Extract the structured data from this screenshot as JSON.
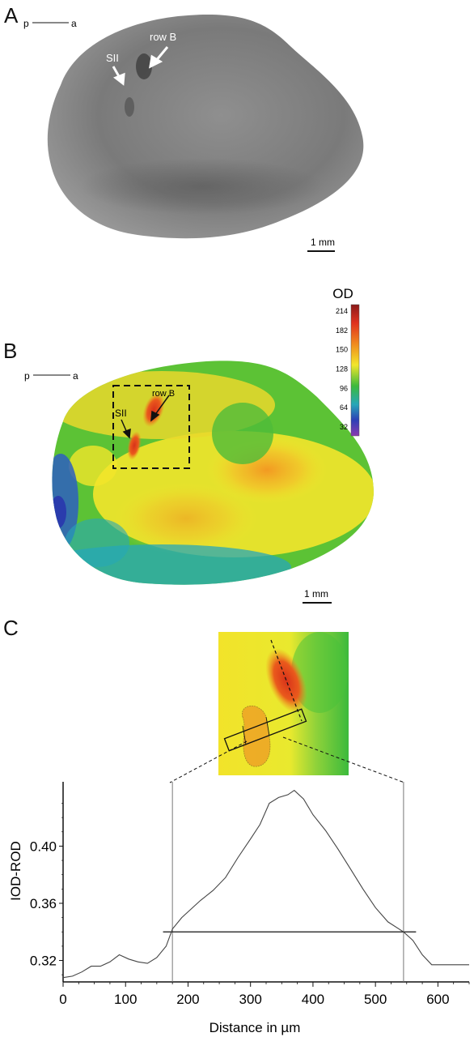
{
  "panels": {
    "A": {
      "letter": "A",
      "orientation": {
        "left": "p",
        "right": "a"
      },
      "labels": {
        "sii": "SII",
        "rowb": "row B"
      },
      "scalebar": "1 mm"
    },
    "B": {
      "letter": "B",
      "orientation": {
        "left": "p",
        "right": "a"
      },
      "labels": {
        "sii": "SII",
        "rowb": "row B"
      },
      "scalebar": "1 mm",
      "colorbar": {
        "title": "OD",
        "ticks": [
          "214",
          "182",
          "150",
          "128",
          "96",
          "64",
          "32"
        ],
        "colors": [
          "#8b1a1a",
          "#e0321e",
          "#f08a1e",
          "#f2e62a",
          "#3cba3c",
          "#27a7b8",
          "#2d3fb6",
          "#8a3ab0"
        ]
      }
    },
    "C": {
      "letter": "C"
    }
  },
  "chart_data": {
    "type": "line",
    "xlabel": "Distance in µm",
    "ylabel": "IOD-ROD",
    "xlim": [
      0,
      650
    ],
    "ylim": [
      0.305,
      0.445
    ],
    "xticks": [
      0,
      100,
      200,
      300,
      400,
      500,
      600
    ],
    "yticks": [
      0.32,
      0.36,
      0.4
    ],
    "ytick_labels": [
      "0.32",
      "0.36",
      "0.40"
    ],
    "threshold": 0.34,
    "threshold_range": [
      160,
      565
    ],
    "vertical_markers": [
      175,
      545
    ],
    "x": [
      0,
      15,
      30,
      45,
      60,
      75,
      90,
      105,
      120,
      135,
      150,
      165,
      175,
      190,
      205,
      220,
      240,
      260,
      280,
      300,
      315,
      330,
      345,
      360,
      370,
      385,
      400,
      420,
      440,
      460,
      480,
      500,
      520,
      545,
      560,
      575,
      590,
      610,
      630,
      650
    ],
    "values": [
      0.308,
      0.309,
      0.312,
      0.316,
      0.316,
      0.319,
      0.324,
      0.321,
      0.319,
      0.318,
      0.322,
      0.33,
      0.342,
      0.35,
      0.356,
      0.362,
      0.369,
      0.378,
      0.392,
      0.405,
      0.415,
      0.43,
      0.434,
      0.436,
      0.439,
      0.433,
      0.422,
      0.411,
      0.398,
      0.384,
      0.37,
      0.357,
      0.347,
      0.34,
      0.334,
      0.324,
      0.317,
      0.317,
      0.317,
      0.317
    ]
  }
}
